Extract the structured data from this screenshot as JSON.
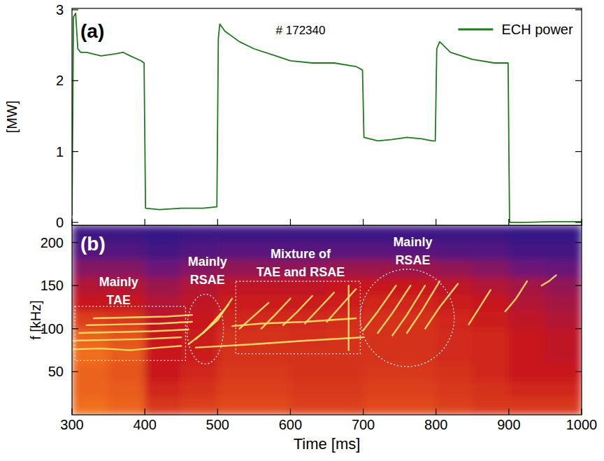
{
  "chart_data": [
    {
      "type": "line",
      "panel_label": "(a)",
      "ylabel": "[MW]",
      "legend": "upper right",
      "tick_labels": "y",
      "xlim": [
        300,
        1000
      ],
      "xticks": [
        300,
        400,
        500,
        600,
        700,
        800,
        900,
        1000
      ],
      "ylim": [
        -0.04,
        3.02
      ],
      "yticks": [
        0,
        1,
        2,
        3
      ],
      "annotations": [
        {
          "text": "# 172340",
          "x": 614,
          "y": 2.71
        }
      ],
      "series": [
        {
          "name": "ECH power",
          "color": "#1f7a1f",
          "x": [
            300,
            302,
            305,
            308,
            312,
            320,
            340,
            360,
            370,
            380,
            395,
            399,
            401,
            420,
            450,
            480,
            499,
            501,
            503,
            510,
            530,
            550,
            580,
            600,
            630,
            660,
            690,
            699,
            701,
            720,
            740,
            760,
            780,
            795,
            799,
            801,
            805,
            820,
            850,
            880,
            899,
            901,
            920,
            960,
            1000
          ],
          "values": [
            0.1,
            2.9,
            2.95,
            2.45,
            2.4,
            2.4,
            2.35,
            2.38,
            2.4,
            2.35,
            2.28,
            2.25,
            0.2,
            0.18,
            0.2,
            0.2,
            0.22,
            2.6,
            2.8,
            2.7,
            2.55,
            2.45,
            2.35,
            2.28,
            2.25,
            2.25,
            2.2,
            2.15,
            1.2,
            1.15,
            1.17,
            1.2,
            1.18,
            1.15,
            1.15,
            2.45,
            2.55,
            2.4,
            2.3,
            2.25,
            2.25,
            0,
            0,
            0.01,
            0.01
          ]
        }
      ]
    },
    {
      "type": "heatmap",
      "panel_label": "(b)",
      "xlabel": "Time [ms]",
      "ylabel": "f [kHz]",
      "color": "#ffe46a",
      "xlim": [
        300,
        1000
      ],
      "xticks": [
        300,
        400,
        500,
        600,
        700,
        800,
        900,
        1000
      ],
      "ylim": [
        0,
        220
      ],
      "yticks": [
        50,
        100,
        150,
        200
      ],
      "heatmap": {
        "x_edges": [
          300,
          350,
          400,
          450,
          500,
          550,
          600,
          650,
          700,
          750,
          800,
          850,
          900,
          950,
          1000
        ],
        "y_edges": [
          0,
          20,
          40,
          60,
          80,
          100,
          120,
          140,
          160,
          180,
          200,
          220
        ],
        "clim": [
          0,
          1
        ],
        "cells": [
          [
            0.75,
            0.72,
            0.6,
            0.62,
            0.65,
            0.65,
            0.62,
            0.62,
            0.65,
            0.65,
            0.62,
            0.6,
            0.6,
            0.6
          ],
          [
            0.72,
            0.7,
            0.55,
            0.58,
            0.62,
            0.62,
            0.6,
            0.6,
            0.62,
            0.62,
            0.6,
            0.58,
            0.55,
            0.55
          ],
          [
            0.72,
            0.68,
            0.5,
            0.55,
            0.6,
            0.6,
            0.58,
            0.58,
            0.6,
            0.6,
            0.58,
            0.55,
            0.5,
            0.5
          ],
          [
            0.75,
            0.7,
            0.5,
            0.52,
            0.58,
            0.58,
            0.58,
            0.58,
            0.58,
            0.58,
            0.56,
            0.55,
            0.5,
            0.48
          ],
          [
            0.72,
            0.68,
            0.5,
            0.52,
            0.58,
            0.58,
            0.57,
            0.58,
            0.58,
            0.58,
            0.56,
            0.55,
            0.5,
            0.48
          ],
          [
            0.62,
            0.6,
            0.48,
            0.5,
            0.55,
            0.56,
            0.56,
            0.57,
            0.58,
            0.58,
            0.55,
            0.52,
            0.48,
            0.45
          ],
          [
            0.5,
            0.5,
            0.45,
            0.48,
            0.52,
            0.52,
            0.52,
            0.53,
            0.55,
            0.55,
            0.52,
            0.5,
            0.45,
            0.42
          ],
          [
            0.45,
            0.45,
            0.4,
            0.45,
            0.48,
            0.48,
            0.48,
            0.5,
            0.5,
            0.5,
            0.48,
            0.45,
            0.42,
            0.38
          ],
          [
            0.35,
            0.35,
            0.3,
            0.35,
            0.38,
            0.38,
            0.38,
            0.4,
            0.4,
            0.4,
            0.38,
            0.35,
            0.3,
            0.28
          ],
          [
            0.2,
            0.2,
            0.15,
            0.2,
            0.22,
            0.22,
            0.22,
            0.22,
            0.22,
            0.22,
            0.2,
            0.2,
            0.15,
            0.15
          ],
          [
            0.12,
            0.12,
            0.1,
            0.12,
            0.12,
            0.12,
            0.12,
            0.12,
            0.12,
            0.12,
            0.12,
            0.12,
            0.1,
            0.1
          ]
        ]
      },
      "series": [
        {
          "x": [
            300,
            340,
            380,
            420,
            450
          ],
          "values": [
            76,
            77,
            75,
            78,
            80
          ]
        },
        {
          "x": [
            300,
            350,
            400,
            450
          ],
          "values": [
            86,
            87,
            88,
            90
          ]
        },
        {
          "x": [
            310,
            360,
            410,
            460
          ],
          "values": [
            95,
            96,
            97,
            99
          ]
        },
        {
          "x": [
            320,
            370,
            420,
            465
          ],
          "values": [
            104,
            105,
            106,
            108
          ]
        },
        {
          "x": [
            330,
            380,
            430,
            465
          ],
          "values": [
            112,
            113,
            114,
            116
          ]
        },
        {
          "x": [
            460,
            480,
            505
          ],
          "values": [
            82,
            95,
            118
          ]
        },
        {
          "x": [
            470,
            490,
            515
          ],
          "values": [
            88,
            103,
            128
          ]
        },
        {
          "x": [
            480,
            500,
            520
          ],
          "values": [
            95,
            110,
            135
          ]
        },
        {
          "x": [
            470,
            550,
            620,
            700
          ],
          "values": [
            78,
            82,
            86,
            90
          ]
        },
        {
          "x": [
            520,
            560,
            620,
            690
          ],
          "values": [
            103,
            106,
            108,
            112
          ]
        },
        {
          "x": [
            530,
            550,
            570
          ],
          "values": [
            100,
            115,
            130
          ]
        },
        {
          "x": [
            560,
            580,
            600
          ],
          "values": [
            100,
            117,
            135
          ]
        },
        {
          "x": [
            590,
            610,
            630
          ],
          "values": [
            104,
            120,
            138
          ]
        },
        {
          "x": [
            620,
            640,
            660
          ],
          "values": [
            106,
            124,
            142
          ]
        },
        {
          "x": [
            650,
            670,
            690
          ],
          "values": [
            108,
            127,
            146
          ]
        },
        {
          "x": [
            680,
            680
          ],
          "values": [
            75,
            150
          ]
        },
        {
          "x": [
            700,
            720,
            745
          ],
          "values": [
            98,
            120,
            150
          ]
        },
        {
          "x": [
            720,
            740,
            765
          ],
          "values": [
            95,
            118,
            150
          ]
        },
        {
          "x": [
            740,
            760,
            785
          ],
          "values": [
            92,
            116,
            150
          ]
        },
        {
          "x": [
            760,
            780,
            805
          ],
          "values": [
            95,
            120,
            155
          ]
        },
        {
          "x": [
            785,
            805,
            830
          ],
          "values": [
            100,
            125,
            152
          ]
        },
        {
          "x": [
            845,
            860,
            875
          ],
          "values": [
            105,
            125,
            145
          ]
        },
        {
          "x": [
            895,
            910,
            925
          ],
          "values": [
            120,
            135,
            155
          ]
        },
        {
          "x": [
            945,
            955,
            965
          ],
          "values": [
            150,
            155,
            162
          ]
        }
      ],
      "boxes": [
        {
          "x": [
            304,
            456
          ],
          "y": [
            63,
            126
          ]
        },
        {
          "x": [
            525,
            696
          ],
          "y": [
            71,
            155
          ]
        }
      ],
      "ellipses": [
        {
          "x": [
            458,
            508
          ],
          "y": [
            59,
            140
          ]
        },
        {
          "x": [
            696,
            825
          ],
          "y": [
            56,
            169
          ]
        }
      ],
      "annotations": [
        {
          "text": [
            "Mainly",
            "TAE"
          ],
          "x": 364,
          "y": 144
        },
        {
          "text": [
            "Mainly",
            "RSAE"
          ],
          "x": 486,
          "y": 167
        },
        {
          "text": [
            "Mixture of",
            "TAE and RSAE"
          ],
          "x": 614,
          "y": 176
        },
        {
          "text": [
            "Mainly",
            "RSAE"
          ],
          "x": 768,
          "y": 190
        }
      ]
    }
  ]
}
